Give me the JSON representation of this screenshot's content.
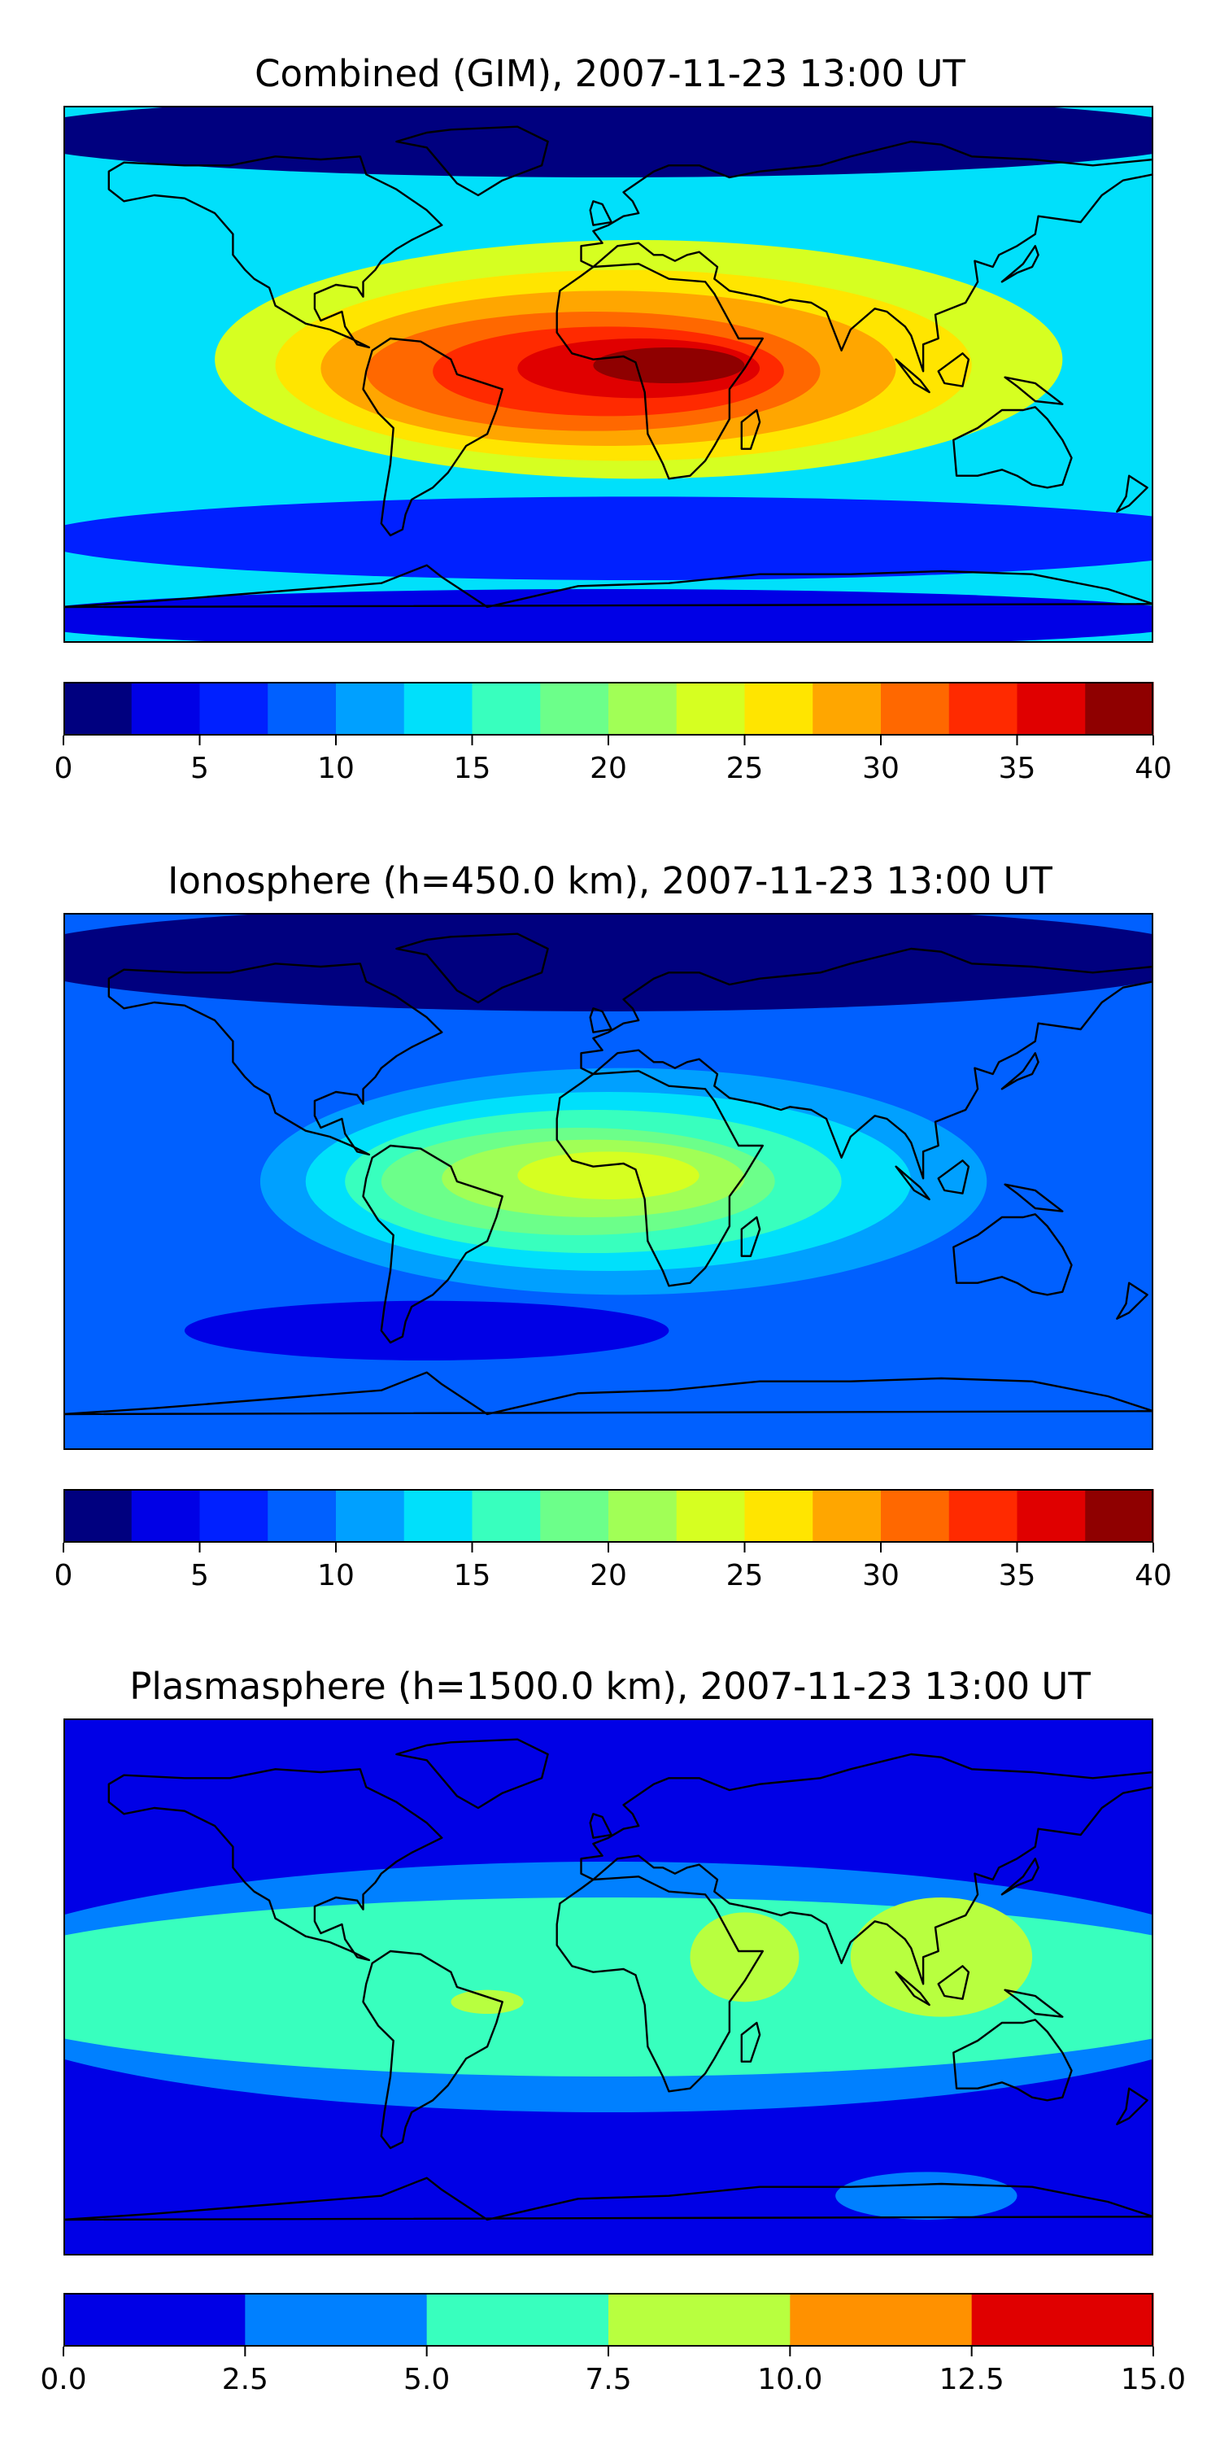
{
  "chart_data": [
    {
      "type": "heatmap",
      "title": "Combined (GIM), 2007-11-23 13:00 UT",
      "colorbar": {
        "ticks": [
          "0",
          "5",
          "10",
          "15",
          "20",
          "25",
          "30",
          "35",
          "40"
        ],
        "range": [
          0,
          40
        ],
        "levels": [
          0,
          2.5,
          5,
          7.5,
          10,
          12.5,
          15,
          17.5,
          20,
          22.5,
          25,
          27.5,
          30,
          32.5,
          35,
          37.5,
          40
        ]
      },
      "background_level": 5,
      "features": [
        {
          "desc": "polar-north",
          "lon": 0,
          "lat": 80,
          "rx": 200,
          "ry": 14,
          "level": 0
        },
        {
          "desc": "south-band",
          "lon": 10,
          "lat": -55,
          "rx": 200,
          "ry": 14,
          "level": 2
        },
        {
          "desc": "antarctic",
          "lon": 0,
          "lat": -82,
          "rx": 200,
          "ry": 10,
          "level": 1
        },
        {
          "desc": "equatorial",
          "lon": 10,
          "lat": 5,
          "rx": 140,
          "ry": 40,
          "level": 9
        },
        {
          "desc": "equatorial",
          "lon": 5,
          "lat": 3,
          "rx": 115,
          "ry": 32,
          "level": 10
        },
        {
          "desc": "equatorial",
          "lon": 0,
          "lat": 2,
          "rx": 95,
          "ry": 26,
          "level": 11
        },
        {
          "desc": "equatorial",
          "lon": -5,
          "lat": 1,
          "rx": 75,
          "ry": 20,
          "level": 12
        },
        {
          "desc": "equatorial",
          "lon": 0,
          "lat": 1,
          "rx": 58,
          "ry": 15,
          "level": 13
        },
        {
          "desc": "equatorial",
          "lon": 10,
          "lat": 2,
          "rx": 40,
          "ry": 10,
          "level": 14
        },
        {
          "desc": "equatorial",
          "lon": 20,
          "lat": 3,
          "rx": 25,
          "ry": 6,
          "level": 15
        }
      ]
    },
    {
      "type": "heatmap",
      "title": "Ionosphere  (h=450.0 km), 2007-11-23 13:00 UT",
      "colorbar": {
        "ticks": [
          "0",
          "5",
          "10",
          "15",
          "20",
          "25",
          "30",
          "35",
          "40"
        ],
        "range": [
          0,
          40
        ],
        "levels": [
          0,
          2.5,
          5,
          7.5,
          10,
          12.5,
          15,
          17.5,
          20,
          22.5,
          25,
          27.5,
          30,
          32.5,
          35,
          37.5,
          40
        ]
      },
      "background_level": 3,
      "features": [
        {
          "desc": "polar-north",
          "lon": 0,
          "lat": 75,
          "rx": 200,
          "ry": 18,
          "level": 0
        },
        {
          "desc": "south-band",
          "lon": -60,
          "lat": -50,
          "rx": 80,
          "ry": 10,
          "level": 1
        },
        {
          "desc": "equatorial",
          "lon": 5,
          "lat": 0,
          "rx": 120,
          "ry": 38,
          "level": 4
        },
        {
          "desc": "equatorial",
          "lon": 0,
          "lat": 0,
          "rx": 100,
          "ry": 30,
          "level": 5
        },
        {
          "desc": "equatorial",
          "lon": -5,
          "lat": 0,
          "rx": 82,
          "ry": 24,
          "level": 6
        },
        {
          "desc": "equatorial",
          "lon": -10,
          "lat": 0,
          "rx": 65,
          "ry": 18,
          "level": 7
        },
        {
          "desc": "equatorial",
          "lon": -5,
          "lat": 1,
          "rx": 50,
          "ry": 13,
          "level": 8
        },
        {
          "desc": "equatorial",
          "lon": 0,
          "lat": 2,
          "rx": 30,
          "ry": 8,
          "level": 9
        }
      ]
    },
    {
      "type": "heatmap",
      "title": "Plasmasphere (h=1500.0 km), 2007-11-23 13:00 UT",
      "colorbar": {
        "ticks": [
          "0.0",
          "2.5",
          "5.0",
          "7.5",
          "10.0",
          "12.5",
          "15.0"
        ],
        "range": [
          0,
          15
        ],
        "levels": [
          0,
          2.5,
          5,
          7.5,
          10,
          12.5,
          15
        ]
      },
      "background_level": 0,
      "features": [
        {
          "desc": "mid-band",
          "lon": 0,
          "lat": 0,
          "rx": 220,
          "ry": 42,
          "level": 1
        },
        {
          "desc": "equatorial-band",
          "lon": 0,
          "lat": 0,
          "rx": 220,
          "ry": 30,
          "level": 2
        },
        {
          "desc": "blob-arabia",
          "lon": 45,
          "lat": 10,
          "rx": 18,
          "ry": 15,
          "level": 3
        },
        {
          "desc": "blob-indonesia",
          "lon": 110,
          "lat": 10,
          "rx": 30,
          "ry": 20,
          "level": 3
        },
        {
          "desc": "blob-brazil",
          "lon": -40,
          "lat": -5,
          "rx": 12,
          "ry": 4,
          "level": 3
        },
        {
          "desc": "south-blob",
          "lon": 105,
          "lat": -70,
          "rx": 30,
          "ry": 8,
          "level": 1
        }
      ]
    }
  ],
  "colors": {
    "jet16": [
      "#00007f",
      "#0000e6",
      "#0020ff",
      "#0060ff",
      "#00a0ff",
      "#00e0fb",
      "#38ffbe",
      "#6cff8a",
      "#a1ff56",
      "#d6ff21",
      "#ffe500",
      "#ffa600",
      "#ff6800",
      "#ff2a00",
      "#e00000",
      "#8f0000"
    ],
    "jet6": [
      "#0000e6",
      "#0080ff",
      "#38ffbe",
      "#b8ff3f",
      "#ff9100",
      "#e00000"
    ]
  }
}
